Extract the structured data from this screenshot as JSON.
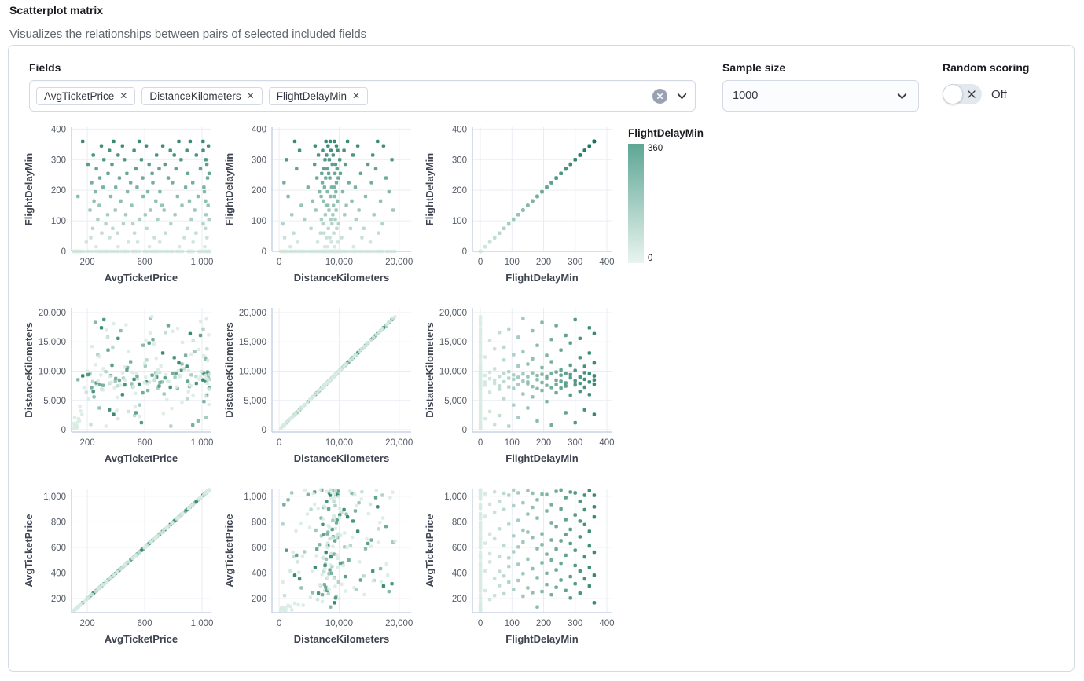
{
  "header": {
    "title": "Scatterplot matrix",
    "subtitle": "Visualizes the relationships between pairs of selected included fields"
  },
  "controls": {
    "fields": {
      "label": "Fields",
      "selected": [
        "AvgTicketPrice",
        "DistanceKilometers",
        "FlightDelayMin"
      ],
      "clear_icon": "x-circle-icon",
      "dropdown_icon": "chevron-down-icon"
    },
    "sample_size": {
      "label": "Sample size",
      "value": "1000"
    },
    "random_scoring": {
      "label": "Random scoring",
      "state": "Off",
      "enabled": false
    }
  },
  "legend": {
    "title": "FlightDelayMin",
    "max_label": "360",
    "min_label": "0",
    "color_top": "#5ea695",
    "color_bottom": "#e9f4ef"
  },
  "chart_data": {
    "type": "scatter",
    "subtype": "scatter_matrix",
    "fields": [
      "AvgTicketPrice",
      "DistanceKilometers",
      "FlightDelayMin"
    ],
    "rows": [
      "FlightDelayMin",
      "DistanceKilometers",
      "AvgTicketPrice"
    ],
    "cols": [
      "AvgTicketPrice",
      "DistanceKilometers",
      "FlightDelayMin"
    ],
    "color_field": "FlightDelayMin",
    "color_range": {
      "min": 0,
      "max": 360,
      "light_rgb": [
        216,
        235,
        227
      ],
      "dark_rgb": [
        20,
        116,
        90
      ]
    },
    "grid": true,
    "axes": {
      "AvgTicketPrice": {
        "x_domain": [
          90,
          1060
        ],
        "y_domain": [
          90,
          1060
        ],
        "x_ticks": [
          {
            "v": 200,
            "label": "200"
          },
          {
            "v": 600,
            "label": "600"
          },
          {
            "v": 1000,
            "label": "1,000"
          }
        ],
        "y_ticks": [
          {
            "v": 200,
            "label": "200"
          },
          {
            "v": 400,
            "label": "400"
          },
          {
            "v": 600,
            "label": "600"
          },
          {
            "v": 800,
            "label": "800"
          },
          {
            "v": 1000,
            "label": "1,000"
          }
        ]
      },
      "DistanceKilometers": {
        "x_domain": [
          -1200,
          22000
        ],
        "y_domain": [
          -400,
          20800
        ],
        "x_ticks": [
          {
            "v": 0,
            "label": "0"
          },
          {
            "v": 10000,
            "label": "10,000"
          },
          {
            "v": 20000,
            "label": "20,000"
          }
        ],
        "y_ticks": [
          {
            "v": 0,
            "label": "0"
          },
          {
            "v": 5000,
            "label": "5,000"
          },
          {
            "v": 10000,
            "label": "10,000"
          },
          {
            "v": 15000,
            "label": "15,000"
          },
          {
            "v": 20000,
            "label": "20,000"
          }
        ]
      },
      "FlightDelayMin": {
        "x_domain": [
          -25,
          415
        ],
        "y_domain": [
          0,
          406
        ],
        "x_ticks": [
          {
            "v": 0,
            "label": "0"
          },
          {
            "v": 100,
            "label": "100"
          },
          {
            "v": 200,
            "label": "200"
          },
          {
            "v": 300,
            "label": "300"
          },
          {
            "v": 400,
            "label": "400"
          }
        ],
        "y_ticks": [
          {
            "v": 0,
            "label": "0"
          },
          {
            "v": 100,
            "label": "100"
          },
          {
            "v": 200,
            "label": "200"
          },
          {
            "v": 300,
            "label": "300"
          },
          {
            "v": 400,
            "label": "400"
          }
        ]
      }
    },
    "samples_note": "representative sample of the ~1000 plotted docs; values are [AvgTicketPrice, DistanceKilometers, FlightDelayMin]",
    "samples": [
      [
        262,
        7606,
        15
      ],
      [
        842,
        9263,
        15
      ],
      [
        415,
        1850,
        15
      ],
      [
        1019,
        12400,
        15
      ],
      [
        633,
        8120,
        15
      ],
      [
        193,
        6400,
        30
      ],
      [
        705,
        9800,
        30
      ],
      [
        938,
        15200,
        30
      ],
      [
        487,
        3100,
        30
      ],
      [
        551,
        8700,
        30
      ],
      [
        356,
        7900,
        45
      ],
      [
        876,
        10400,
        45
      ],
      [
        224,
        900,
        45
      ],
      [
        1034,
        13800,
        45
      ],
      [
        668,
        8450,
        45
      ],
      [
        301,
        6900,
        60
      ],
      [
        745,
        16600,
        60
      ],
      [
        529,
        2400,
        60
      ],
      [
        958,
        9100,
        60
      ],
      [
        412,
        7480,
        60
      ],
      [
        614,
        11900,
        75
      ],
      [
        238,
        8200,
        75
      ],
      [
        896,
        5300,
        75
      ],
      [
        1023,
        9600,
        75
      ],
      [
        377,
        14100,
        75
      ],
      [
        518,
        7300,
        90
      ],
      [
        782,
        600,
        90
      ],
      [
        329,
        9900,
        90
      ],
      [
        1008,
        17200,
        90
      ],
      [
        451,
        8800,
        90
      ],
      [
        273,
        12800,
        105
      ],
      [
        690,
        7050,
        105
      ],
      [
        925,
        9350,
        105
      ],
      [
        566,
        4200,
        105
      ],
      [
        1048,
        8600,
        105
      ],
      [
        342,
        15800,
        120
      ],
      [
        811,
        8950,
        120
      ],
      [
        468,
        7700,
        120
      ],
      [
        1027,
        2100,
        120
      ],
      [
        604,
        10900,
        120
      ],
      [
        219,
        9500,
        135
      ],
      [
        735,
        6100,
        135
      ],
      [
        948,
        13300,
        135
      ],
      [
        395,
        8300,
        135
      ],
      [
        642,
        19000,
        135
      ],
      [
        509,
        7850,
        150
      ],
      [
        860,
        11200,
        150
      ],
      [
        284,
        3700,
        150
      ],
      [
        1042,
        9050,
        150
      ],
      [
        720,
        8150,
        150
      ],
      [
        433,
        16900,
        165
      ],
      [
        678,
        9700,
        165
      ],
      [
        912,
        7350,
        165
      ],
      [
        247,
        5600,
        165
      ],
      [
        1024,
        12100,
        165
      ],
      [
        135,
        8550,
        180
      ],
      [
        590,
        14400,
        180
      ],
      [
        829,
        7000,
        180
      ],
      [
        364,
        9250,
        180
      ],
      [
        972,
        1500,
        180
      ],
      [
        480,
        10600,
        195
      ],
      [
        706,
        8050,
        195
      ],
      [
        255,
        18300,
        195
      ],
      [
        1016,
        9450,
        195
      ],
      [
        622,
        6700,
        195
      ],
      [
        310,
        7550,
        210
      ],
      [
        885,
        12700,
        210
      ],
      [
        547,
        9150,
        210
      ],
      [
        1013,
        4800,
        210
      ],
      [
        398,
        8750,
        210
      ],
      [
        657,
        15400,
        225
      ],
      [
        230,
        7200,
        225
      ],
      [
        793,
        9550,
        225
      ],
      [
        935,
        800,
        225
      ],
      [
        502,
        11600,
        225
      ],
      [
        424,
        8450,
        240
      ],
      [
        1038,
        9850,
        240
      ],
      [
        586,
        6300,
        240
      ],
      [
        764,
        17800,
        240
      ],
      [
        288,
        7750,
        240
      ],
      [
        652,
        9300,
        255
      ],
      [
        345,
        13600,
        255
      ],
      [
        901,
        8250,
        255
      ],
      [
        1049,
        7100,
        255
      ],
      [
        476,
        10200,
        255
      ],
      [
        539,
        2900,
        270
      ],
      [
        818,
        9650,
        270
      ],
      [
        263,
        8000,
        270
      ],
      [
        989,
        16100,
        270
      ],
      [
        701,
        7450,
        270
      ],
      [
        372,
        11000,
        285
      ],
      [
        741,
        8850,
        285
      ],
      [
        1033,
        5900,
        285
      ],
      [
        205,
        9400,
        285
      ],
      [
        631,
        14800,
        285
      ],
      [
        459,
        7650,
        300
      ],
      [
        854,
        10100,
        300
      ],
      [
        316,
        18800,
        300
      ],
      [
        1026,
        8350,
        300
      ],
      [
        577,
        1200,
        300
      ],
      [
        683,
        9000,
        315
      ],
      [
        242,
        6550,
        315
      ],
      [
        806,
        12300,
        315
      ],
      [
        960,
        7900,
        315
      ],
      [
        415,
        15600,
        315
      ],
      [
        526,
        8600,
        330
      ],
      [
        1008,
        9750,
        330
      ],
      [
        354,
        3400,
        330
      ],
      [
        779,
        7250,
        330
      ],
      [
        894,
        10800,
        330
      ],
      [
        298,
        17400,
        345
      ],
      [
        611,
        8150,
        345
      ],
      [
        1044,
        9550,
        345
      ],
      [
        445,
        6000,
        345
      ],
      [
        726,
        13100,
        345
      ],
      [
        168,
        9200,
        360
      ],
      [
        562,
        7800,
        360
      ],
      [
        838,
        11400,
        360
      ],
      [
        383,
        2600,
        360
      ],
      [
        1007,
        8500,
        360
      ],
      [
        917,
        16400,
        360
      ],
      [
        104,
        250,
        0
      ],
      [
        118,
        900,
        0
      ],
      [
        131,
        400,
        0
      ],
      [
        145,
        1500,
        0
      ],
      [
        112,
        2100,
        0
      ],
      [
        126,
        700,
        0
      ],
      [
        152,
        3200,
        0
      ],
      [
        108,
        1100,
        0
      ],
      [
        139,
        1900,
        0
      ],
      [
        121,
        350,
        0
      ],
      [
        163,
        2600,
        0
      ],
      [
        116,
        550,
        0
      ],
      [
        148,
        4000,
        0
      ],
      [
        134,
        1300,
        0
      ],
      [
        110,
        800,
        0
      ],
      [
        274,
        8300,
        0
      ],
      [
        356,
        9100,
        0
      ],
      [
        431,
        7600,
        0
      ],
      [
        515,
        9800,
        0
      ],
      [
        598,
        8050,
        0
      ],
      [
        672,
        8900,
        0
      ],
      [
        748,
        9400,
        0
      ],
      [
        823,
        7300,
        0
      ],
      [
        906,
        10100,
        0
      ],
      [
        981,
        8650,
        0
      ],
      [
        1021,
        9250,
        0
      ],
      [
        1037,
        7950,
        0
      ],
      [
        312,
        10400,
        0
      ],
      [
        389,
        7150,
        0
      ],
      [
        463,
        8500,
        0
      ],
      [
        542,
        9600,
        0
      ],
      [
        618,
        7850,
        0
      ],
      [
        694,
        10250,
        0
      ],
      [
        769,
        8200,
        0
      ],
      [
        845,
        9050,
        0
      ],
      [
        922,
        7500,
        0
      ],
      [
        997,
        9900,
        0
      ],
      [
        1029,
        8750,
        0
      ],
      [
        295,
        9350,
        0
      ],
      [
        367,
        8100,
        0
      ],
      [
        447,
        9700,
        0
      ],
      [
        523,
        7400,
        0
      ],
      [
        607,
        8950,
        0
      ],
      [
        683,
        9500,
        0
      ],
      [
        757,
        8400,
        0
      ],
      [
        834,
        10050,
        0
      ],
      [
        911,
        7700,
        0
      ],
      [
        988,
        9150,
        0
      ],
      [
        1041,
        8550,
        0
      ],
      [
        1047,
        9450,
        0
      ],
      [
        210,
        5200,
        0
      ],
      [
        285,
        12500,
        0
      ],
      [
        340,
        15700,
        0
      ],
      [
        405,
        3300,
        0
      ],
      [
        470,
        17900,
        0
      ],
      [
        535,
        6200,
        0
      ],
      [
        600,
        11300,
        0
      ],
      [
        665,
        14600,
        0
      ],
      [
        730,
        2800,
        0
      ],
      [
        795,
        16800,
        0
      ],
      [
        860,
        4700,
        0
      ],
      [
        925,
        12900,
        0
      ],
      [
        990,
        18500,
        0
      ],
      [
        1024,
        5700,
        0
      ],
      [
        1039,
        11800,
        0
      ],
      [
        232,
        14200,
        0
      ],
      [
        308,
        6800,
        0
      ],
      [
        383,
        18100,
        0
      ],
      [
        458,
        10700,
        0
      ],
      [
        533,
        3900,
        0
      ],
      [
        608,
        15300,
        0
      ],
      [
        680,
        12200,
        0
      ],
      [
        755,
        5100,
        0
      ],
      [
        830,
        17300,
        0
      ],
      [
        905,
        6500,
        0
      ],
      [
        978,
        13700,
        0
      ],
      [
        1048,
        4300,
        0
      ],
      [
        1046,
        16200,
        0
      ],
      [
        258,
        11100,
        0
      ],
      [
        333,
        17000,
        0
      ],
      [
        412,
        5500,
        0
      ],
      [
        487,
        13400,
        0
      ],
      [
        563,
        2300,
        0
      ],
      [
        638,
        16500,
        0
      ],
      [
        713,
        10900,
        0
      ],
      [
        788,
        3600,
        0
      ],
      [
        863,
        14900,
        0
      ],
      [
        938,
        5900,
        0
      ],
      [
        1012,
        12600,
        0
      ],
      [
        1031,
        18900,
        0
      ],
      [
        200,
        9990,
        0
      ],
      [
        1050,
        6900,
        0
      ],
      [
        176,
        7200,
        0
      ],
      [
        650,
        19300,
        0
      ],
      [
        330,
        600,
        0
      ]
    ]
  }
}
